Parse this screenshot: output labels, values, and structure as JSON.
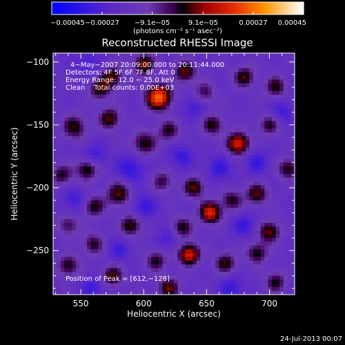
{
  "chart_data": {
    "type": "heatmap",
    "title": "Reconstructed RHESSI Image",
    "xlabel": "Heliocentric X (arcsec)",
    "ylabel": "Heliocentric Y (arcsec)",
    "xlim": [
      528,
      720
    ],
    "ylim": [
      -285,
      -93
    ],
    "x_ticks": [
      550,
      600,
      650,
      700
    ],
    "y_ticks": [
      -100,
      -150,
      -200,
      -250
    ],
    "x_tick_labels": [
      "550",
      "600",
      "650",
      "700"
    ],
    "y_tick_labels": [
      "−100",
      "−150",
      "−200",
      "−250"
    ],
    "colorbar": {
      "range": [
        -0.00045,
        0.00045
      ],
      "tick_values": [
        -0.00045,
        -0.00027,
        -9.1e-05,
        9.1e-05,
        0.00027,
        0.00045
      ],
      "tick_labels": [
        "−0.00045",
        "−0.00027",
        "−9.1e−05",
        "9.1e−05",
        "0.00027",
        "0.00045"
      ],
      "units_label": "(photons cm⁻² s⁻¹ asec⁻²)"
    },
    "annotations": {
      "time_range": "4−May−2007 20:09:00.000 to 20:11:44.000",
      "detectors": "Detectors: 4F 5F 6F 7F 8F, Att 0",
      "energy_range": "Energy Range: 12.0 − 25.0 keV",
      "method": "Clean    Total counts: 0.00E+03",
      "peak": "Position of Peak = [612,−128]"
    },
    "peak": [
      612,
      -128
    ],
    "sources": [
      {
        "x": 612,
        "y": -128,
        "amp": 1.0,
        "s": 7
      },
      {
        "x": 600,
        "y": -102,
        "amp": 0.62,
        "s": 6
      },
      {
        "x": 575,
        "y": -112,
        "amp": 0.55,
        "s": 6
      },
      {
        "x": 565,
        "y": -122,
        "amp": 0.5,
        "s": 6
      },
      {
        "x": 633,
        "y": -108,
        "amp": 0.58,
        "s": 6
      },
      {
        "x": 648,
        "y": -125,
        "amp": 0.42,
        "s": 6
      },
      {
        "x": 680,
        "y": -112,
        "amp": 0.52,
        "s": 6
      },
      {
        "x": 705,
        "y": -120,
        "amp": 0.48,
        "s": 6
      },
      {
        "x": 545,
        "y": -152,
        "amp": 0.5,
        "s": 7
      },
      {
        "x": 573,
        "y": -145,
        "amp": 0.55,
        "s": 6
      },
      {
        "x": 600,
        "y": -165,
        "amp": 0.5,
        "s": 7
      },
      {
        "x": 620,
        "y": -155,
        "amp": 0.45,
        "s": 6
      },
      {
        "x": 655,
        "y": -150,
        "amp": 0.5,
        "s": 6
      },
      {
        "x": 675,
        "y": -165,
        "amp": 0.85,
        "s": 6
      },
      {
        "x": 700,
        "y": -150,
        "amp": 0.45,
        "s": 6
      },
      {
        "x": 715,
        "y": -185,
        "amp": 0.5,
        "s": 6
      },
      {
        "x": 535,
        "y": -190,
        "amp": 0.45,
        "s": 6
      },
      {
        "x": 555,
        "y": -185,
        "amp": 0.6,
        "s": 6
      },
      {
        "x": 580,
        "y": -205,
        "amp": 0.55,
        "s": 7
      },
      {
        "x": 560,
        "y": -215,
        "amp": 0.5,
        "s": 6
      },
      {
        "x": 615,
        "y": -195,
        "amp": 0.4,
        "s": 6
      },
      {
        "x": 640,
        "y": -200,
        "amp": 0.55,
        "s": 6
      },
      {
        "x": 670,
        "y": -210,
        "amp": 0.45,
        "s": 6
      },
      {
        "x": 690,
        "y": -205,
        "amp": 0.55,
        "s": 6
      },
      {
        "x": 700,
        "y": -235,
        "amp": 0.6,
        "s": 6
      },
      {
        "x": 653,
        "y": -220,
        "amp": 0.82,
        "s": 6
      },
      {
        "x": 630,
        "y": -232,
        "amp": 0.5,
        "s": 6
      },
      {
        "x": 590,
        "y": -230,
        "amp": 0.55,
        "s": 6
      },
      {
        "x": 560,
        "y": -245,
        "amp": 0.45,
        "s": 6
      },
      {
        "x": 540,
        "y": -262,
        "amp": 0.5,
        "s": 6
      },
      {
        "x": 575,
        "y": -270,
        "amp": 0.55,
        "s": 6
      },
      {
        "x": 610,
        "y": -258,
        "amp": 0.45,
        "s": 6
      },
      {
        "x": 636,
        "y": -253,
        "amp": 0.82,
        "s": 6
      },
      {
        "x": 665,
        "y": -260,
        "amp": 0.5,
        "s": 6
      },
      {
        "x": 690,
        "y": -252,
        "amp": 0.5,
        "s": 6
      },
      {
        "x": 705,
        "y": -275,
        "amp": 0.45,
        "s": 6
      },
      {
        "x": 620,
        "y": -280,
        "amp": 0.55,
        "s": 6
      },
      {
        "x": 540,
        "y": -230,
        "amp": 0.4,
        "s": 6
      },
      {
        "x": 560,
        "y": -175,
        "amp": -0.3,
        "s": 7
      },
      {
        "x": 590,
        "y": -185,
        "amp": -0.35,
        "s": 8
      },
      {
        "x": 630,
        "y": -175,
        "amp": -0.3,
        "s": 7
      },
      {
        "x": 660,
        "y": -185,
        "amp": -0.3,
        "s": 7
      },
      {
        "x": 690,
        "y": -180,
        "amp": -0.28,
        "s": 7
      },
      {
        "x": 545,
        "y": -210,
        "amp": -0.28,
        "s": 7
      },
      {
        "x": 600,
        "y": -215,
        "amp": -0.32,
        "s": 7
      },
      {
        "x": 680,
        "y": -230,
        "amp": -0.28,
        "s": 7
      },
      {
        "x": 670,
        "y": -280,
        "amp": -0.3,
        "s": 7
      },
      {
        "x": 560,
        "y": -280,
        "amp": -0.28,
        "s": 7
      },
      {
        "x": 620,
        "y": -240,
        "amp": -0.25,
        "s": 7
      },
      {
        "x": 640,
        "y": -135,
        "amp": -0.28,
        "s": 7
      },
      {
        "x": 555,
        "y": -100,
        "amp": -0.25,
        "s": 7
      },
      {
        "x": 710,
        "y": -140,
        "amp": -0.28,
        "s": 7
      },
      {
        "x": 580,
        "y": -250,
        "amp": -0.25,
        "s": 7
      }
    ]
  },
  "footer": {
    "date_stamp": "24-Jul-2013 00:07"
  }
}
